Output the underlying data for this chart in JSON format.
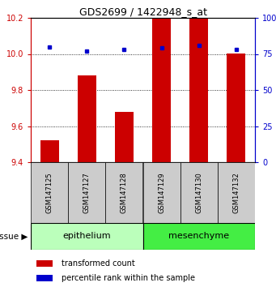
{
  "title": "GDS2699 / 1422948_s_at",
  "samples": [
    "GSM147125",
    "GSM147127",
    "GSM147128",
    "GSM147129",
    "GSM147130",
    "GSM147132"
  ],
  "bar_values": [
    9.52,
    9.88,
    9.68,
    10.2,
    10.2,
    10.0
  ],
  "percentile_values": [
    80,
    77,
    78,
    79,
    81,
    78
  ],
  "bar_base": 9.4,
  "ylim_left": [
    9.4,
    10.2
  ],
  "ylim_right": [
    0,
    100
  ],
  "yticks_left": [
    9.4,
    9.6,
    9.8,
    10.0,
    10.2
  ],
  "yticks_right": [
    0,
    25,
    50,
    75,
    100
  ],
  "ytick_labels_right": [
    "0",
    "25",
    "50",
    "75",
    "100%"
  ],
  "bar_color": "#cc0000",
  "dot_color": "#0000cc",
  "tissue_groups": [
    {
      "label": "epithelium",
      "start": 0,
      "end": 3,
      "color": "#bbffbb"
    },
    {
      "label": "mesenchyme",
      "start": 3,
      "end": 6,
      "color": "#44ee44"
    }
  ],
  "tissue_label": "tissue",
  "background_color": "#ffffff",
  "bar_width": 0.5,
  "sample_bg_color": "#cccccc",
  "legend_items": [
    {
      "color": "#cc0000",
      "label": "transformed count"
    },
    {
      "color": "#0000cc",
      "label": "percentile rank within the sample"
    }
  ]
}
